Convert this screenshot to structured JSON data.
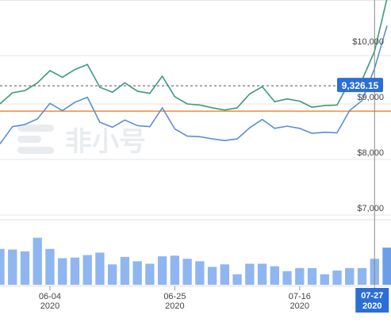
{
  "colors": {
    "upper_line": "#3d9a78",
    "lower_line": "#5b8fd6",
    "reference_line": "#f08a3c",
    "volume_bar": "#8fb6f0",
    "volume_bar_highlight": "#6a9ee9",
    "tooltip_bg": "#2b6fd6",
    "tooltip_text": "#ffffff",
    "grid": "#e6e6e6",
    "axis_text": "#444444",
    "watermark": "#e9ecef"
  },
  "watermark": {
    "text": "非小号"
  },
  "current_price_label": "9,326.15",
  "hover_date_label": [
    "07-27",
    "2020"
  ],
  "chart_data": [
    {
      "type": "line",
      "title": "",
      "xlabel": "",
      "ylabel": "",
      "ylim": [
        7000,
        10500
      ],
      "y_ticks": [
        {
          "value": 7000,
          "label": "$7,000"
        },
        {
          "value": 8000,
          "label": "$8,000"
        },
        {
          "value": 9000,
          "label": "$9,000"
        },
        {
          "value": 10000,
          "label": "$10,000"
        }
      ],
      "x_ticks": [
        {
          "index": 4,
          "label": [
            "06-04",
            "2020"
          ]
        },
        {
          "index": 14,
          "label": [
            "06-25",
            "2020"
          ]
        },
        {
          "index": 24,
          "label": [
            "07-16",
            "2020"
          ]
        }
      ],
      "grid": "horizontal",
      "reference_line": 8870,
      "current_price_line": 9326.15,
      "series": [
        {
          "name": "",
          "color_key": "upper_line",
          "values": [
            9000,
            9200,
            9240,
            9380,
            9600,
            9480,
            9620,
            9710,
            9300,
            9210,
            9380,
            9230,
            9190,
            9500,
            9130,
            9000,
            8980,
            8930,
            8890,
            8930,
            9180,
            9310,
            9040,
            9090,
            9050,
            8940,
            8970,
            8980,
            9400,
            9430,
            9950,
            10900
          ]
        },
        {
          "name": "",
          "color_key": "lower_line",
          "values": [
            8280,
            8590,
            8630,
            8730,
            9010,
            8880,
            9030,
            9120,
            8670,
            8580,
            8710,
            8610,
            8590,
            8930,
            8550,
            8420,
            8410,
            8370,
            8340,
            8370,
            8570,
            8720,
            8560,
            8600,
            8560,
            8470,
            8490,
            8480,
            8880,
            9060,
            9640,
            10410
          ]
        }
      ],
      "volume": [
        0.58,
        0.57,
        0.54,
        0.76,
        0.58,
        0.43,
        0.44,
        0.48,
        0.52,
        0.33,
        0.45,
        0.38,
        0.34,
        0.46,
        0.47,
        0.42,
        0.38,
        0.29,
        0.33,
        0.17,
        0.34,
        0.34,
        0.3,
        0.22,
        0.27,
        0.27,
        0.17,
        0.23,
        0.27,
        0.27,
        0.42,
        0.6
      ],
      "hover_index": 30
    }
  ]
}
